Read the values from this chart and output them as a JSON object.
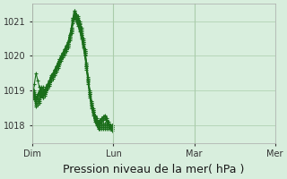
{
  "background_color": "#d8eedd",
  "plot_bg_color": "#d8eedd",
  "grid_color": "#aaccaa",
  "line_color": "#1a6e1a",
  "marker_color": "#1a6e1a",
  "ylim": [
    1017.5,
    1021.5
  ],
  "yticks": [
    1018,
    1019,
    1020,
    1021
  ],
  "xlabel": "Pression niveau de la mer( hPa )",
  "xlabel_fontsize": 9,
  "day_labels": [
    "Dim",
    "Lun",
    "Mar",
    "Mer"
  ],
  "day_positions": [
    0,
    48,
    96,
    144
  ],
  "figsize": [
    3.2,
    2.0
  ],
  "dpi": 100,
  "series": [
    [
      1018.8,
      1018.9,
      1018.7,
      1018.8,
      1018.9,
      1019.0,
      1018.8,
      1018.85,
      1019.0,
      1019.1,
      1019.2,
      1019.3,
      1019.4,
      1019.5,
      1019.6,
      1019.7,
      1019.8,
      1019.9,
      1020.0,
      1020.1,
      1020.2,
      1020.3,
      1020.5,
      1020.7,
      1021.0,
      1021.2,
      1021.1,
      1021.05,
      1020.9,
      1020.7,
      1020.4,
      1020.1,
      1019.7,
      1019.3,
      1018.9,
      1018.6,
      1018.4,
      1018.2,
      1018.1,
      1018.0,
      1018.05,
      1018.1,
      1018.15,
      1018.2,
      1018.1,
      1018.0,
      1017.9,
      1017.85
    ],
    [
      1018.85,
      1018.95,
      1018.75,
      1018.85,
      1018.95,
      1019.05,
      1018.85,
      1018.9,
      1019.05,
      1019.15,
      1019.25,
      1019.35,
      1019.45,
      1019.55,
      1019.65,
      1019.75,
      1019.85,
      1019.95,
      1020.05,
      1020.15,
      1020.25,
      1020.35,
      1020.55,
      1020.75,
      1021.05,
      1021.25,
      1021.15,
      1021.1,
      1020.95,
      1020.75,
      1020.45,
      1020.15,
      1019.75,
      1019.35,
      1018.95,
      1018.65,
      1018.45,
      1018.25,
      1018.15,
      1018.05,
      1018.1,
      1018.15,
      1018.2,
      1018.25,
      1018.15,
      1018.05,
      1017.95,
      1017.9
    ],
    [
      1018.9,
      1019.0,
      1018.8,
      1018.9,
      1019.0,
      1019.1,
      1018.9,
      1018.95,
      1019.1,
      1019.2,
      1019.3,
      1019.4,
      1019.5,
      1019.6,
      1019.7,
      1019.8,
      1019.9,
      1020.0,
      1020.1,
      1020.2,
      1020.3,
      1020.4,
      1020.6,
      1020.8,
      1021.1,
      1021.3,
      1021.2,
      1021.15,
      1021.0,
      1020.8,
      1020.5,
      1020.2,
      1019.8,
      1019.4,
      1019.0,
      1018.7,
      1018.5,
      1018.3,
      1018.2,
      1018.1,
      1018.15,
      1018.2,
      1018.25,
      1018.3,
      1018.2,
      1018.1,
      1018.0,
      1017.95
    ],
    [
      1018.75,
      1019.2,
      1019.5,
      1019.3,
      1019.1,
      1018.9,
      1018.8,
      1018.9,
      1019.0,
      1019.1,
      1019.2,
      1019.3,
      1019.45,
      1019.55,
      1019.65,
      1019.75,
      1019.85,
      1019.95,
      1020.05,
      1020.15,
      1020.25,
      1020.35,
      1020.55,
      1020.75,
      1021.05,
      1021.25,
      1021.1,
      1021.0,
      1020.8,
      1020.6,
      1020.35,
      1020.1,
      1019.7,
      1019.3,
      1018.9,
      1018.6,
      1018.4,
      1018.2,
      1018.1,
      1018.0,
      1018.0,
      1018.0,
      1018.0,
      1018.0,
      1018.0,
      1018.0,
      1018.0,
      1018.0
    ],
    [
      1019.0,
      1018.9,
      1018.7,
      1018.75,
      1018.8,
      1019.0,
      1019.1,
      1019.0,
      1019.1,
      1019.2,
      1019.3,
      1019.45,
      1019.5,
      1019.6,
      1019.7,
      1019.8,
      1019.9,
      1020.0,
      1020.1,
      1020.2,
      1020.3,
      1020.4,
      1020.6,
      1020.8,
      1021.1,
      1021.3,
      1021.15,
      1021.0,
      1020.85,
      1020.65,
      1020.4,
      1020.15,
      1019.75,
      1019.35,
      1018.95,
      1018.65,
      1018.45,
      1018.25,
      1018.15,
      1018.05,
      1018.05,
      1018.05,
      1018.05,
      1018.05,
      1018.05,
      1018.05,
      1018.0,
      1018.0
    ],
    [
      1018.85,
      1018.9,
      1018.65,
      1018.7,
      1018.75,
      1018.95,
      1019.05,
      1019.0,
      1019.05,
      1019.15,
      1019.25,
      1019.4,
      1019.45,
      1019.55,
      1019.65,
      1019.75,
      1019.85,
      1019.95,
      1020.05,
      1020.15,
      1020.25,
      1020.35,
      1020.55,
      1020.75,
      1021.05,
      1021.2,
      1021.1,
      1020.95,
      1020.8,
      1020.6,
      1020.35,
      1020.1,
      1019.7,
      1019.3,
      1018.9,
      1018.6,
      1018.4,
      1018.2,
      1018.1,
      1018.0,
      1018.0,
      1018.0,
      1018.0,
      1018.0,
      1018.0,
      1018.0,
      1018.0,
      1018.0
    ],
    [
      1018.8,
      1018.85,
      1018.6,
      1018.65,
      1018.7,
      1018.9,
      1019.0,
      1018.95,
      1019.0,
      1019.1,
      1019.2,
      1019.35,
      1019.4,
      1019.5,
      1019.6,
      1019.7,
      1019.8,
      1019.9,
      1020.0,
      1020.1,
      1020.2,
      1020.3,
      1020.5,
      1020.7,
      1021.0,
      1021.15,
      1021.05,
      1020.9,
      1020.75,
      1020.55,
      1020.3,
      1020.05,
      1019.65,
      1019.25,
      1018.85,
      1018.55,
      1018.35,
      1018.15,
      1018.05,
      1017.95,
      1017.95,
      1017.95,
      1017.95,
      1017.95,
      1017.95,
      1017.95,
      1017.95,
      1017.95
    ],
    [
      1018.75,
      1018.8,
      1018.55,
      1018.6,
      1018.65,
      1018.85,
      1018.95,
      1018.9,
      1018.95,
      1019.05,
      1019.15,
      1019.3,
      1019.35,
      1019.45,
      1019.55,
      1019.65,
      1019.75,
      1019.85,
      1019.95,
      1020.05,
      1020.15,
      1020.25,
      1020.45,
      1020.65,
      1020.95,
      1021.1,
      1021.0,
      1020.85,
      1020.7,
      1020.5,
      1020.25,
      1020.0,
      1019.6,
      1019.2,
      1018.8,
      1018.5,
      1018.3,
      1018.1,
      1018.0,
      1017.9,
      1017.9,
      1017.9,
      1017.9,
      1017.9,
      1017.9,
      1017.9,
      1017.9,
      1017.9
    ]
  ]
}
